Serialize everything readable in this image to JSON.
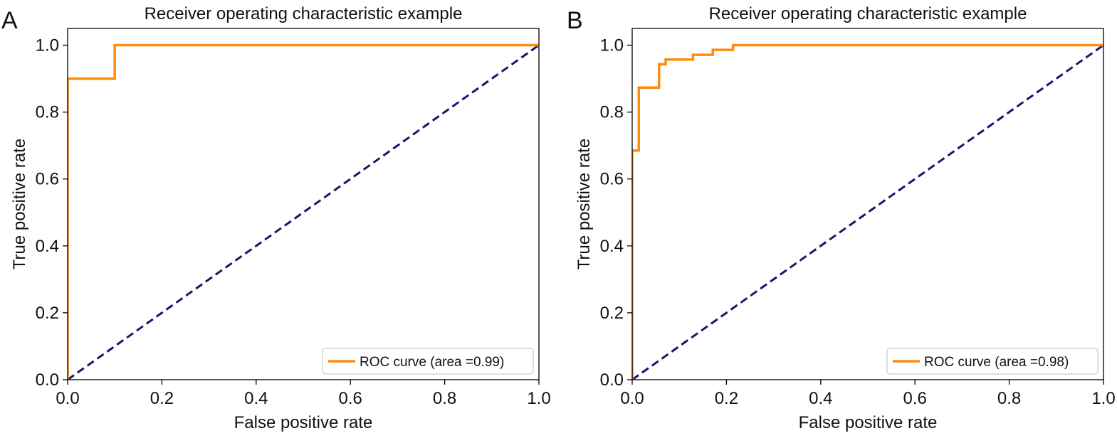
{
  "figure": {
    "panels": [
      {
        "label": "A"
      },
      {
        "label": "B"
      }
    ]
  },
  "colors": {
    "roc": "#ff8c0f",
    "diagonal": "#17176e",
    "axis": "#000000",
    "text": "#111111"
  },
  "chart_data": [
    {
      "type": "line",
      "panel_label": "A",
      "title": "Receiver operating characteristic example",
      "xlabel": "False positive rate",
      "ylabel": "True positive rate",
      "xlim": [
        0,
        1
      ],
      "ylim": [
        0,
        1.05
      ],
      "xticks": [
        "0.0",
        "0.2",
        "0.4",
        "0.6",
        "0.8",
        "1.0"
      ],
      "yticks": [
        "0.0",
        "0.2",
        "0.4",
        "0.6",
        "0.8",
        "1.0"
      ],
      "grid": false,
      "legend_position": "lower-right",
      "series": [
        {
          "name": "ROC curve (area =0.99)",
          "style": "solid",
          "color": "#ff8c0f",
          "x": [
            0.0,
            0.0,
            0.1,
            0.1,
            1.0
          ],
          "y": [
            0.0,
            0.9,
            0.9,
            1.0,
            1.0
          ]
        },
        {
          "style": "dashed",
          "color": "#17176e",
          "x": [
            0.0,
            1.0
          ],
          "y": [
            0.0,
            1.0
          ]
        }
      ]
    },
    {
      "type": "line",
      "panel_label": "B",
      "title": "Receiver operating characteristic example",
      "xlabel": "False positive rate",
      "ylabel": "True positive rate",
      "xlim": [
        0,
        1
      ],
      "ylim": [
        0,
        1.05
      ],
      "xticks": [
        "0.0",
        "0.2",
        "0.4",
        "0.6",
        "0.8",
        "1.0"
      ],
      "yticks": [
        "0.0",
        "0.2",
        "0.4",
        "0.6",
        "0.8",
        "1.0"
      ],
      "grid": false,
      "legend_position": "lower-right",
      "series": [
        {
          "name": "ROC curve (area =0.98)",
          "style": "solid",
          "color": "#ff8c0f",
          "x": [
            0.0,
            0.0,
            0.014,
            0.014,
            0.057,
            0.057,
            0.071,
            0.071,
            0.129,
            0.129,
            0.171,
            0.171,
            0.214,
            0.214,
            1.0
          ],
          "y": [
            0.0,
            0.685,
            0.685,
            0.873,
            0.873,
            0.943,
            0.943,
            0.957,
            0.957,
            0.971,
            0.971,
            0.986,
            0.986,
            1.0,
            1.0
          ]
        },
        {
          "style": "dashed",
          "color": "#17176e",
          "x": [
            0.0,
            1.0
          ],
          "y": [
            0.0,
            1.0
          ]
        }
      ]
    }
  ]
}
